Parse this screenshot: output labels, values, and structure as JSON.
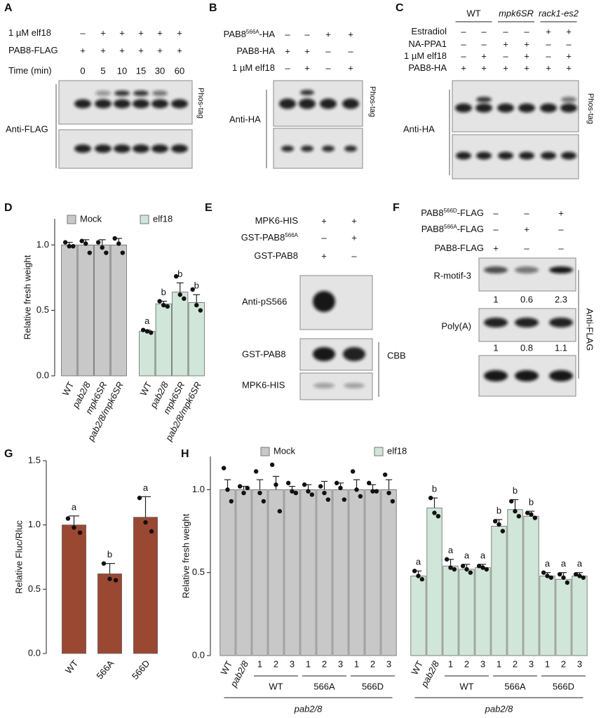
{
  "panels": {
    "A": {
      "label": "A",
      "rows": [
        {
          "label": "1 µM elf18",
          "signs": [
            "–",
            "+",
            "+",
            "+",
            "+",
            "+"
          ]
        },
        {
          "label": "PAB8-FLAG",
          "signs": [
            "+",
            "+",
            "+",
            "+",
            "+",
            "+"
          ]
        },
        {
          "label": "Time (min)",
          "signs": [
            "0",
            "5",
            "10",
            "15",
            "30",
            "60"
          ]
        }
      ],
      "antibody": "Anti-FLAG",
      "gel": "Phos-tag"
    },
    "B": {
      "label": "B",
      "rows": [
        {
          "label": "PAB8",
          "sup": "566A",
          "suffix": "-HA",
          "signs": [
            "–",
            "–",
            "+",
            "+"
          ]
        },
        {
          "label": "PAB8-HA",
          "signs": [
            "+",
            "+",
            "–",
            "–"
          ]
        },
        {
          "label": "1 µM elf18",
          "signs": [
            "–",
            "+",
            "–",
            "+"
          ]
        }
      ],
      "antibody": "Anti-HA",
      "gel": "Phos-tag"
    },
    "C": {
      "label": "C",
      "groups": [
        "WT",
        "mpk6SR",
        "rack1-es2"
      ],
      "rows": [
        {
          "label": "Estradiol",
          "signs": [
            "–",
            "–",
            "–",
            "–",
            "+",
            "+"
          ]
        },
        {
          "label": "NA-PPA1",
          "signs": [
            "–",
            "–",
            "+",
            "+",
            "–",
            "–"
          ]
        },
        {
          "label": "1 µM elf18",
          "signs": [
            "–",
            "+",
            "–",
            "+",
            "–",
            "+"
          ]
        },
        {
          "label": "PAB8-HA",
          "signs": [
            "+",
            "+",
            "+",
            "+",
            "+",
            "+"
          ]
        }
      ],
      "antibody": "Anti-HA",
      "gel": "Phos-tag"
    },
    "E": {
      "label": "E",
      "rows": [
        {
          "label": "MPK6-HIS",
          "signs": [
            "+",
            "+"
          ]
        },
        {
          "label": "GST-PAB8",
          "sup": "566A",
          "signs": [
            "–",
            "+"
          ]
        },
        {
          "label": "GST-PAB8",
          "signs": [
            "+",
            "–"
          ]
        }
      ],
      "blots": [
        "Anti-pS566",
        "GST-PAB8",
        "MPK6-HIS"
      ],
      "stain": "CBB"
    },
    "F": {
      "label": "F",
      "rows": [
        {
          "label": "PAB8",
          "sup": "566D",
          "suffix": "-FLAG",
          "signs": [
            "–",
            "–",
            "+"
          ]
        },
        {
          "label": "PAB8",
          "sup": "566A",
          "suffix": "-FLAG",
          "signs": [
            "–",
            "+",
            "–"
          ]
        },
        {
          "label": "PAB8-FLAG",
          "signs": [
            "+",
            "–",
            "–"
          ]
        }
      ],
      "blots": [
        {
          "label": "R-motif-3",
          "quant": [
            1,
            0.6,
            2.3
          ]
        },
        {
          "label": "Poly(A)",
          "quant": [
            1,
            0.8,
            1.1
          ]
        }
      ],
      "antibody": "Anti-FLAG"
    }
  },
  "chart_data": [
    {
      "type": "bar",
      "label": "D",
      "ylabel": "Relative fresh weight",
      "categories": [
        "WT",
        "pab2/8",
        "mpk6SR",
        "pab2/8/mpk6SR"
      ],
      "series": [
        {
          "name": "Mock",
          "color": "#c8c8c8",
          "values": [
            1.0,
            1.0,
            1.0,
            1.0
          ],
          "errors": [
            0.02,
            0.04,
            0.04,
            0.05
          ],
          "points": [
            [
              1.02,
              0.99,
              0.99
            ],
            [
              1.03,
              1.01,
              0.94
            ],
            [
              1.02,
              0.98,
              0.94
            ],
            [
              1.05,
              1.01,
              0.94
            ]
          ]
        },
        {
          "name": "elf18",
          "color": "#cfe6d8",
          "values": [
            0.34,
            0.55,
            0.64,
            0.56
          ],
          "errors": [
            0.01,
            0.02,
            0.07,
            0.06
          ],
          "points": [
            [
              0.35,
              0.34,
              0.33
            ],
            [
              0.57,
              0.54,
              0.53
            ],
            [
              0.76,
              0.62,
              0.59
            ],
            [
              0.66,
              0.54,
              0.5
            ]
          ],
          "letters": [
            "a",
            "b",
            "b",
            "b"
          ]
        }
      ],
      "ylim": [
        0,
        1.2
      ],
      "yticks": [
        {
          "value": 0,
          "label": "0.0"
        },
        0.5,
        {
          "value": 1,
          "label": "1.0"
        }
      ]
    },
    {
      "type": "bar",
      "label": "G",
      "ylabel": "Relative Fluc/Rluc",
      "categories": [
        "WT",
        "566A",
        "566D"
      ],
      "color": "#9a4832",
      "values": [
        1.0,
        0.62,
        1.06
      ],
      "errors": [
        0.07,
        0.08,
        0.16
      ],
      "points": [
        [
          1.05,
          0.98,
          0.94
        ],
        [
          0.7,
          0.58,
          0.57
        ],
        [
          1.21,
          1.02,
          0.95
        ]
      ],
      "letters": [
        "a",
        "b",
        "a"
      ],
      "ylim": [
        0,
        1.5
      ],
      "yticks": [
        {
          "value": 0,
          "label": "0.0"
        },
        0.5,
        {
          "value": 1,
          "label": "1.0"
        },
        1.5
      ]
    },
    {
      "type": "bar",
      "label": "H",
      "ylabel": "Relative fresh weight",
      "categories": [
        "WT",
        "pab2/8",
        "1",
        "2",
        "3",
        "1",
        "2",
        "3",
        "1",
        "2",
        "3"
      ],
      "subgroups": [
        "WT",
        "566A",
        "566D"
      ],
      "group_label": "pab2/8",
      "series": [
        {
          "name": "Mock",
          "color": "#c8c8c8",
          "values": [
            1.0,
            1.0,
            1.0,
            1.0,
            1.0,
            1.0,
            1.0,
            1.0,
            1.0,
            1.0,
            1.0
          ],
          "errors": [
            0.06,
            0.02,
            0.06,
            0.08,
            0.02,
            0.03,
            0.05,
            0.04,
            0.06,
            0.03,
            0.06
          ],
          "points": [
            [
              1.13,
              1.0,
              0.93
            ],
            [
              1.02,
              0.98,
              1.01
            ],
            [
              1.11,
              0.98,
              0.93
            ],
            [
              1.15,
              1.03,
              0.87
            ],
            [
              1.04,
              0.99,
              0.98
            ],
            [
              1.03,
              0.99,
              0.97
            ],
            [
              1.02,
              0.98,
              0.94
            ],
            [
              1.04,
              1.01,
              0.94
            ],
            [
              1.11,
              1.0,
              0.96
            ],
            [
              1.04,
              0.99,
              0.99
            ],
            [
              1.09,
              0.98,
              0.93
            ]
          ]
        },
        {
          "name": "elf18",
          "color": "#cfe6d8",
          "values": [
            0.48,
            0.89,
            0.54,
            0.52,
            0.53,
            0.78,
            0.88,
            0.84,
            0.48,
            0.46,
            0.48
          ],
          "errors": [
            0.03,
            0.06,
            0.04,
            0.03,
            0.02,
            0.04,
            0.06,
            0.03,
            0.02,
            0.04,
            0.02
          ],
          "points": [
            [
              0.51,
              0.48,
              0.46
            ],
            [
              0.95,
              0.86,
              0.84
            ],
            [
              0.58,
              0.53,
              0.52
            ],
            [
              0.54,
              0.52,
              0.5
            ],
            [
              0.54,
              0.53,
              0.52
            ],
            [
              0.81,
              0.79,
              0.75
            ],
            [
              0.93,
              0.87,
              0.84
            ],
            [
              0.86,
              0.85,
              0.83
            ],
            [
              0.5,
              0.48,
              0.47
            ],
            [
              0.49,
              0.47,
              0.44
            ],
            [
              0.49,
              0.48,
              0.47
            ]
          ],
          "letters": [
            "a",
            "b",
            "a",
            "a",
            "a",
            "b",
            "b",
            "b",
            "a",
            "a",
            "a"
          ]
        }
      ],
      "ylim": [
        0,
        1.2
      ],
      "yticks": [
        {
          "value": 0,
          "label": "0.0"
        },
        0.5,
        {
          "value": 1,
          "label": "1.0"
        }
      ]
    }
  ]
}
